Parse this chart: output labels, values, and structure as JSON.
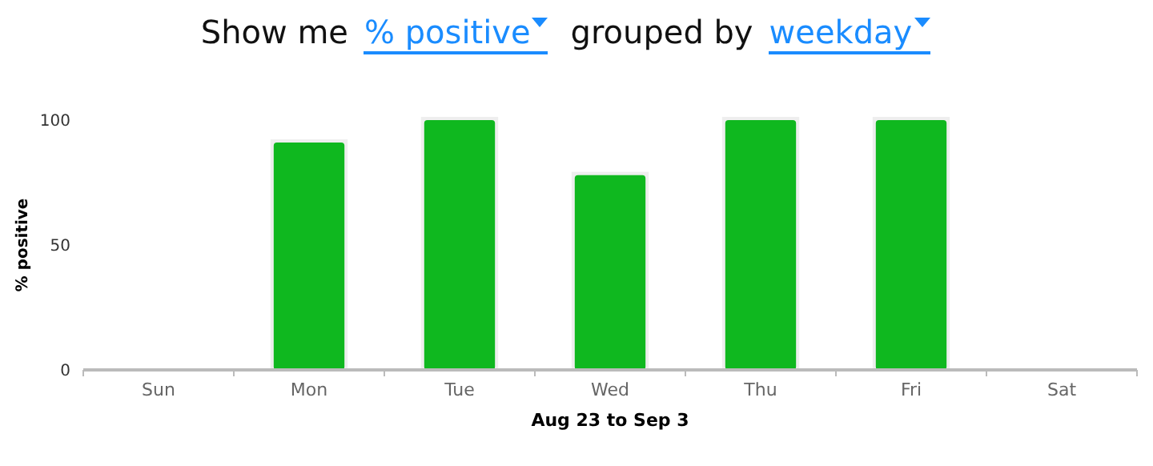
{
  "chart_data": {
    "type": "bar",
    "title": "Show me",
    "annotations": [
      "% positive",
      "grouped by",
      "weekday"
    ],
    "xlabel": "Aug 23 to Sep 3",
    "ylabel": "% positive",
    "categories": [
      "Sun",
      "Mon",
      "Tue",
      "Wed",
      "Thu",
      "Fri",
      "Sat"
    ],
    "values": [
      null,
      91,
      100,
      78,
      100,
      100,
      null
    ],
    "color": "#0fb81f",
    "ylim": [
      0,
      100
    ],
    "yticks": [
      0,
      50,
      100
    ],
    "grid": false
  }
}
